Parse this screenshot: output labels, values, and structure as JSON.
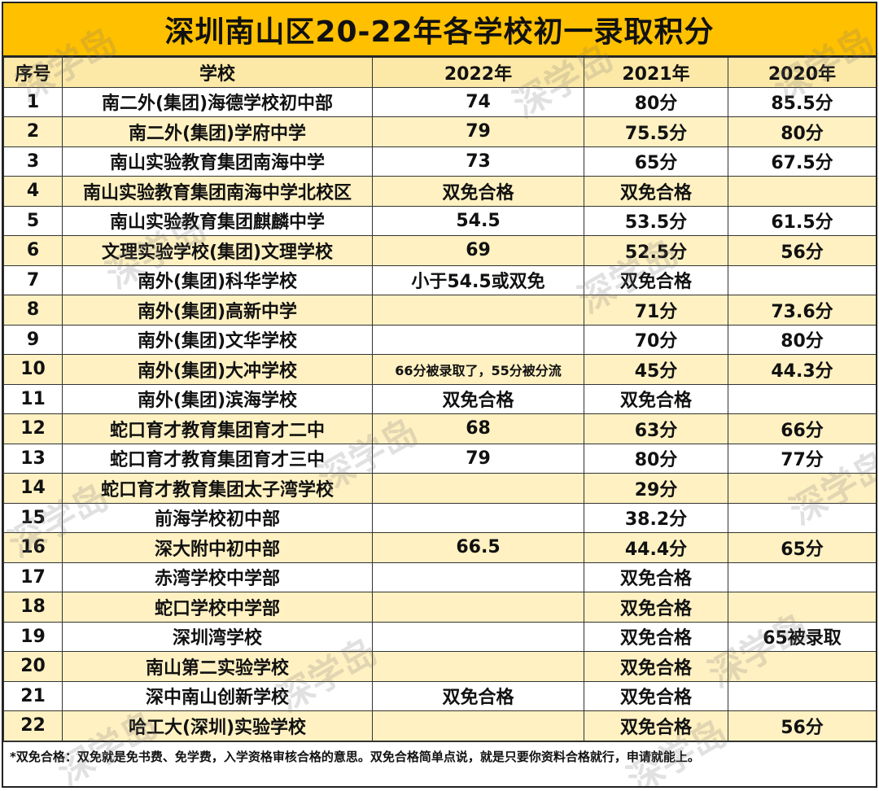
{
  "title": "深圳南山区20-22年各学校初一录取积分",
  "headers": [
    "序号",
    "学校",
    "2022年",
    "2021年",
    "2020年"
  ],
  "rows": [
    [
      "1",
      "南二外(集团)海德学校初中部",
      "74",
      "80分",
      "85.5分"
    ],
    [
      "2",
      "南二外(集团)学府中学",
      "79",
      "75.5分",
      "80分"
    ],
    [
      "3",
      "南山实验教育集团南海中学",
      "73",
      "65分",
      "67.5分"
    ],
    [
      "4",
      "南山实验教育集团南海中学北校区",
      "双免合格",
      "双免合格",
      ""
    ],
    [
      "5",
      "南山实验教育集团麒麟中学",
      "54.5",
      "53.5分",
      "61.5分"
    ],
    [
      "6",
      "文理实验学校(集团)文理学校",
      "69",
      "52.5分",
      "56分"
    ],
    [
      "7",
      "南外(集团)科华学校",
      "小于54.5或双免",
      "双免合格",
      ""
    ],
    [
      "8",
      "南外(集团)高新中学",
      "",
      "71分",
      "73.6分"
    ],
    [
      "9",
      "南外(集团)文华学校",
      "",
      "70分",
      "80分"
    ],
    [
      "10",
      "南外(集团)大冲学校",
      "66分被录取了，55分被分流",
      "45分",
      "44.3分"
    ],
    [
      "11",
      "南外(集团)滨海学校",
      "双免合格",
      "双免合格",
      ""
    ],
    [
      "12",
      "蛇口育才教育集团育才二中",
      "68",
      "63分",
      "66分"
    ],
    [
      "13",
      "蛇口育才教育集团育才三中",
      "79",
      "80分",
      "77分"
    ],
    [
      "14",
      "蛇口育才教育集团太子湾学校",
      "",
      "29分",
      ""
    ],
    [
      "15",
      "前海学校初中部",
      "",
      "38.2分",
      ""
    ],
    [
      "16",
      "深大附中初中部",
      "66.5",
      "44.4分",
      "65分"
    ],
    [
      "17",
      "赤湾学校中学部",
      "",
      "双免合格",
      ""
    ],
    [
      "18",
      "蛇口学校中学部",
      "",
      "双免合格",
      ""
    ],
    [
      "19",
      "深圳湾学校",
      "",
      "双免合格",
      "65被录取"
    ],
    [
      "20",
      "南山第二实验学校",
      "",
      "双免合格",
      ""
    ],
    [
      "21",
      "深中南山创新学校",
      "双免合格",
      "双免合格",
      ""
    ],
    [
      "22",
      "哈工大(深圳)实验学校",
      "",
      "双免合格",
      "56分"
    ]
  ],
  "footnote": "*双免合格：双免就是免书费、免学费，入学资格审核合格的意思。双免合格简单点说，就是只要你资料合格就行，申请就能上。",
  "watermark": "深学岛",
  "colors": {
    "title_bg": "#ffc000",
    "header_bg": "#fde9a7",
    "stripe_bg": "#fff1c2"
  }
}
